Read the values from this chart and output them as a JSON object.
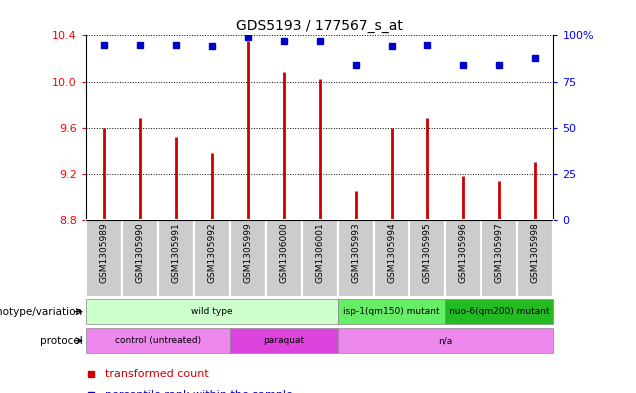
{
  "title": "GDS5193 / 177567_s_at",
  "samples": [
    "GSM1305989",
    "GSM1305990",
    "GSM1305991",
    "GSM1305992",
    "GSM1305999",
    "GSM1306000",
    "GSM1306001",
    "GSM1305993",
    "GSM1305994",
    "GSM1305995",
    "GSM1305996",
    "GSM1305997",
    "GSM1305998"
  ],
  "transformed_count": [
    9.6,
    9.68,
    9.52,
    9.38,
    10.35,
    10.08,
    10.02,
    9.05,
    9.6,
    9.68,
    9.18,
    9.14,
    9.3
  ],
  "percentile_rank": [
    95,
    95,
    95,
    94,
    99,
    97,
    97,
    84,
    94,
    95,
    84,
    84,
    88
  ],
  "ymin": 8.8,
  "ymax": 10.4,
  "yticks_left": [
    8.8,
    9.2,
    9.6,
    10.0,
    10.4
  ],
  "yticks_right": [
    0,
    25,
    50,
    75,
    100
  ],
  "bar_color": "#cc0000",
  "dot_color": "#0000cc",
  "genotype_groups": [
    {
      "label": "wild type",
      "start": 0,
      "end": 7,
      "color": "#ccffcc"
    },
    {
      "label": "isp-1(qm150) mutant",
      "start": 7,
      "end": 10,
      "color": "#66ee66"
    },
    {
      "label": "nuo-6(qm200) mutant",
      "start": 10,
      "end": 13,
      "color": "#22bb22"
    }
  ],
  "protocol_groups": [
    {
      "label": "control (untreated)",
      "start": 0,
      "end": 4,
      "color": "#ee88ee"
    },
    {
      "label": "paraquat",
      "start": 4,
      "end": 7,
      "color": "#dd44dd"
    },
    {
      "label": "n/a",
      "start": 7,
      "end": 13,
      "color": "#ee88ee"
    }
  ],
  "sample_box_color": "#cccccc",
  "sample_box_edge": "#ffffff"
}
